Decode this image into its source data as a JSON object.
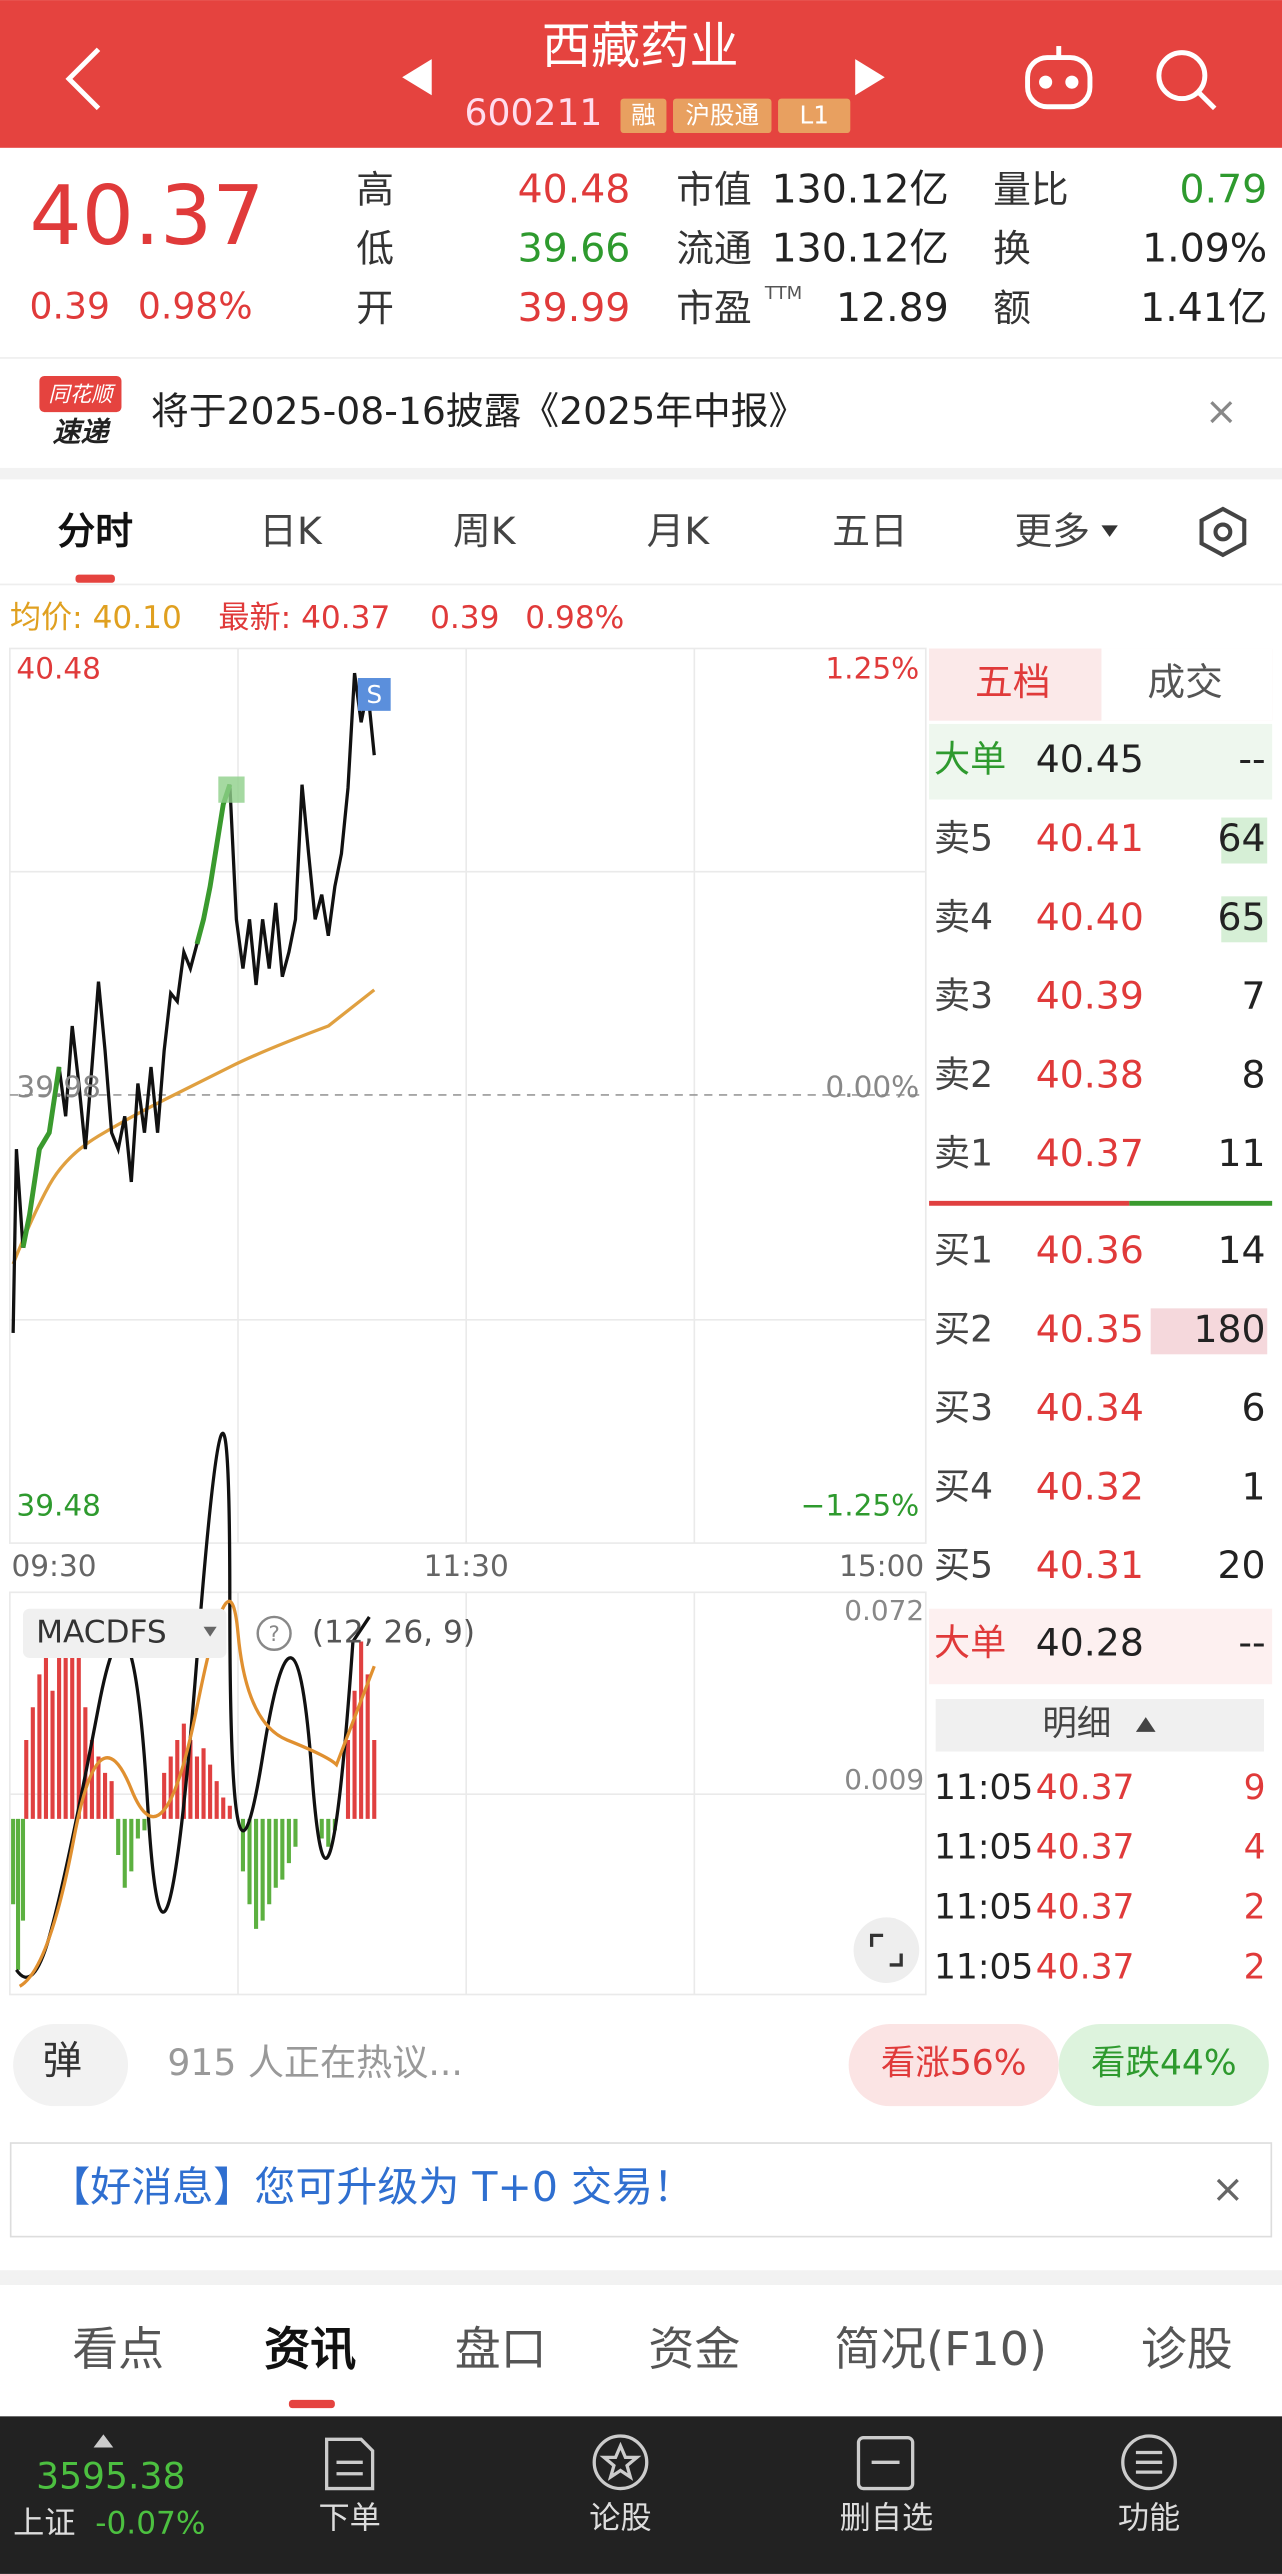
{
  "header": {
    "title": "西藏药业",
    "code": "600211",
    "tags": [
      "融",
      "沪股通",
      "L1"
    ]
  },
  "quote": {
    "price": "40.37",
    "change": "0.39",
    "change_pct": "0.98%",
    "stats": [
      [
        {
          "label": "高",
          "value": "40.48",
          "color": "#e03a3a"
        },
        {
          "label": "低",
          "value": "39.66",
          "color": "#2e9a2e"
        },
        {
          "label": "开",
          "value": "39.99",
          "color": "#e03a3a"
        }
      ],
      [
        {
          "label": "市值",
          "value": "130.12亿",
          "color": "#222222"
        },
        {
          "label": "流通",
          "value": "130.12亿",
          "color": "#222222"
        },
        {
          "label": "市盈",
          "sup": "TTM",
          "value": "12.89",
          "color": "#222222"
        }
      ],
      [
        {
          "label": "量比",
          "value": "0.79",
          "color": "#2e9a2e"
        },
        {
          "label": "换",
          "value": "1.09%",
          "color": "#222222"
        },
        {
          "label": "额",
          "value": "1.41亿",
          "color": "#222222"
        }
      ]
    ]
  },
  "notice": {
    "logo": [
      "同花顺",
      "速递"
    ],
    "text": "将于2025-08-16披露《2025年中报》"
  },
  "tabs": [
    "分时",
    "日K",
    "周K",
    "月K",
    "五日",
    "更多"
  ],
  "summary": {
    "avg": "均价: 40.10",
    "latest": "最新: 40.37",
    "change": "0.39",
    "change_pct": "0.98%"
  },
  "intraday": {
    "high": "40.48",
    "high_pct": "1.25%",
    "base": "39.98",
    "base_pct": "0.00%",
    "low": "39.48",
    "low_pct": "−1.25%",
    "times": [
      "09:30",
      "11:30",
      "15:00"
    ],
    "marker": "S"
  },
  "macd": {
    "name": "MACDFS",
    "params": "(12, 26, 9)",
    "ticks": [
      "0.072",
      "0.009"
    ]
  },
  "orderbook": {
    "tabs": [
      "五档",
      "成交"
    ],
    "big_sell": {
      "label": "大单",
      "price": "40.45",
      "volume": "--"
    },
    "asks": [
      {
        "label": "卖5",
        "price": "40.41",
        "volume": "64"
      },
      {
        "label": "卖4",
        "price": "40.40",
        "volume": "65"
      },
      {
        "label": "卖3",
        "price": "40.39",
        "volume": "7"
      },
      {
        "label": "卖2",
        "price": "40.38",
        "volume": "8"
      },
      {
        "label": "卖1",
        "price": "40.37",
        "volume": "11"
      }
    ],
    "bids": [
      {
        "label": "买1",
        "price": "40.36",
        "volume": "14"
      },
      {
        "label": "买2",
        "price": "40.35",
        "volume": "180"
      },
      {
        "label": "买3",
        "price": "40.34",
        "volume": "6"
      },
      {
        "label": "买4",
        "price": "40.32",
        "volume": "1"
      },
      {
        "label": "买5",
        "price": "40.31",
        "volume": "20"
      }
    ],
    "big_buy": {
      "label": "大单",
      "price": "40.28",
      "volume": "--"
    },
    "detail_title": "明细",
    "trades": [
      {
        "time": "11:05",
        "price": "40.37",
        "volume": "9"
      },
      {
        "time": "11:05",
        "price": "40.37",
        "volume": "4"
      },
      {
        "time": "11:05",
        "price": "40.37",
        "volume": "2"
      },
      {
        "time": "11:05",
        "price": "40.37",
        "volume": "2"
      }
    ]
  },
  "social": {
    "danmu": "弹",
    "discussion": "915 人正在热议...",
    "bull": "看涨56%",
    "bear": "看跌44%"
  },
  "promo": {
    "text": "【好消息】您可升级为 T+0 交易！"
  },
  "bottom_tabs": [
    "看点",
    "资讯",
    "盘口",
    "资金",
    "简况(F10)",
    "诊股"
  ],
  "footer": {
    "index_value": "3595.38",
    "index_name": "上证",
    "index_change": "-0.07%",
    "items": [
      "下单",
      "论股",
      "删自选",
      "功能"
    ]
  }
}
